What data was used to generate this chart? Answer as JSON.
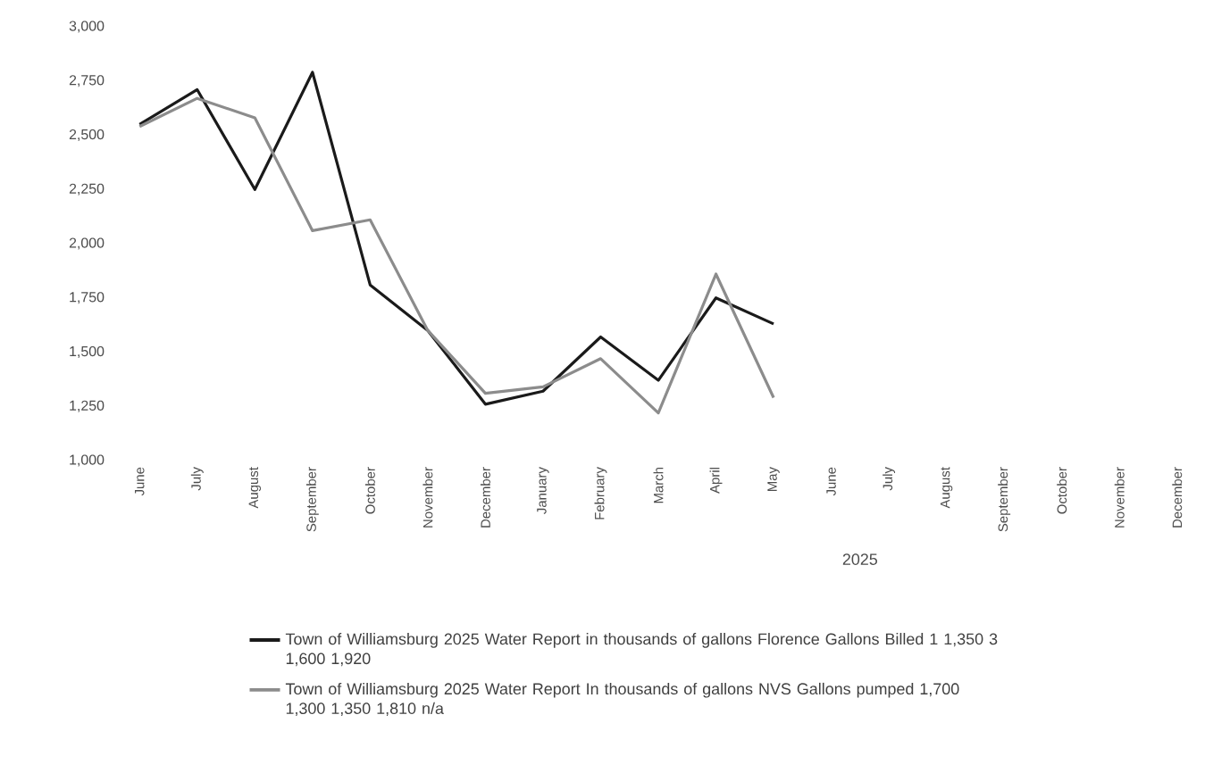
{
  "chart_data": {
    "type": "line",
    "xlabel": "2025",
    "categories": [
      "June",
      "July",
      "August",
      "September",
      "October",
      "November",
      "December",
      "January",
      "February",
      "March",
      "April",
      "May",
      "June",
      "July",
      "August",
      "September",
      "October",
      "November",
      "December"
    ],
    "series": [
      {
        "name": "Town of Williamsburg 2025 Water Report  in thousands of gallons Florence Gallons Billed 1  1,350  3  1,600  1,920",
        "color": "#1a1a1a",
        "values": [
          2550,
          2710,
          2250,
          2790,
          1810,
          1600,
          1260,
          1320,
          1570,
          1370,
          1750,
          1630,
          null,
          null,
          null,
          null,
          null,
          null,
          null
        ]
      },
      {
        "name": "Town of Williamsburg 2025 Water Report  In thousands of gallons NVS Gallons pumped 1,700  1,300  1,350  1,810  n/a",
        "color": "#8c8c8c",
        "values": [
          2540,
          2670,
          2580,
          2060,
          2110,
          1600,
          1310,
          1340,
          1470,
          1220,
          1860,
          1290,
          null,
          null,
          null,
          null,
          null,
          null,
          null
        ]
      }
    ],
    "ylim": [
      1000,
      3000
    ],
    "yticks": [
      {
        "value": 1000,
        "label": "1,000"
      },
      {
        "value": 1250,
        "label": "1,250"
      },
      {
        "value": 1500,
        "label": "1,500"
      },
      {
        "value": 1750,
        "label": "1,750"
      },
      {
        "value": 2000,
        "label": "2,000"
      },
      {
        "value": 2250,
        "label": "2,250"
      },
      {
        "value": 2500,
        "label": "2,500"
      },
      {
        "value": 2750,
        "label": "2,750"
      },
      {
        "value": 3000,
        "label": "3,000"
      }
    ],
    "grid": false,
    "legend": "bottom",
    "marker": "none",
    "line_style": "solid"
  }
}
